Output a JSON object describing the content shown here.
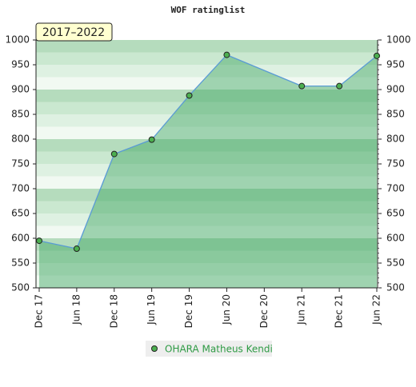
{
  "chart_data": {
    "type": "area",
    "title": "WOF ratinglist",
    "badge": "2017–2022",
    "categories": [
      "Dec 17",
      "Jun 18",
      "Dec 18",
      "Jun 19",
      "Dec 19",
      "Jun 20",
      "Dec 20",
      "Jun 21",
      "Dec 21",
      "Jun 22"
    ],
    "series": [
      {
        "name": "OHARA Matheus Kendi",
        "color": "#5a9bd5",
        "values": [
          595,
          579,
          770,
          799,
          888,
          970,
          null,
          907,
          907,
          968
        ]
      }
    ],
    "ylim": [
      500,
      1000
    ],
    "yticks": [
      500,
      550,
      600,
      650,
      700,
      750,
      800,
      850,
      900,
      950,
      1000
    ],
    "grid": true
  }
}
